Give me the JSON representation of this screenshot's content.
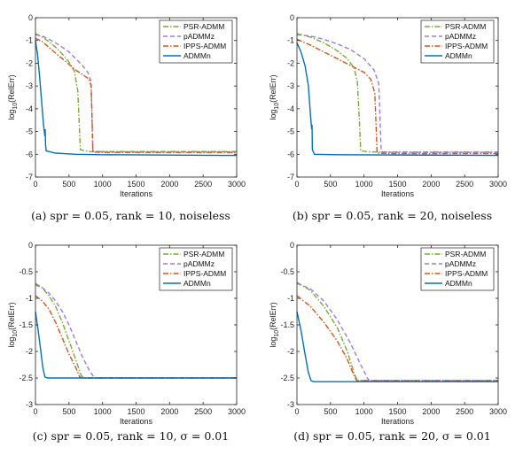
{
  "chart_data": [
    {
      "type": "line",
      "caption": "(a) spr = 0.05, rank = 10, noiseless",
      "xlabel": "Iterations",
      "ylabel": "log10(RelErr)",
      "xlim": [
        0,
        3000
      ],
      "ylim": [
        -7,
        0
      ],
      "xticks": [
        "0",
        "500",
        "1000",
        "1500",
        "2000",
        "2500",
        "3000"
      ],
      "yticks": [
        "0",
        "-1",
        "-2",
        "-3",
        "-4",
        "-5",
        "-6",
        "-7"
      ],
      "legend": "top-right",
      "series": [
        {
          "name": "PSR-ADMM",
          "color": "#77ac30",
          "dash": "6,2,1.5,2",
          "points": [
            [
              0,
              -0.7
            ],
            [
              100,
              -0.85
            ],
            [
              200,
              -1.05
            ],
            [
              300,
              -1.3
            ],
            [
              400,
              -1.6
            ],
            [
              500,
              -1.95
            ],
            [
              580,
              -2.35
            ],
            [
              630,
              -3.2
            ],
            [
              650,
              -4.5
            ],
            [
              670,
              -5.8
            ],
            [
              800,
              -5.88
            ],
            [
              3000,
              -5.88
            ]
          ]
        },
        {
          "name": "pADMMz",
          "color": "#9d7be0",
          "dash": "5,3",
          "points": [
            [
              0,
              -0.75
            ],
            [
              100,
              -0.8
            ],
            [
              200,
              -0.95
            ],
            [
              300,
              -1.1
            ],
            [
              400,
              -1.3
            ],
            [
              500,
              -1.5
            ],
            [
              600,
              -1.8
            ],
            [
              700,
              -2.1
            ],
            [
              780,
              -2.4
            ],
            [
              830,
              -2.8
            ],
            [
              845,
              -4.5
            ],
            [
              855,
              -5.85
            ],
            [
              1000,
              -5.9
            ],
            [
              3000,
              -5.9
            ]
          ]
        },
        {
          "name": "IPPS-ADMM",
          "color": "#d95319",
          "dash": "6,2,1.5,2",
          "points": [
            [
              0,
              -0.9
            ],
            [
              100,
              -1.05
            ],
            [
              200,
              -1.3
            ],
            [
              300,
              -1.55
            ],
            [
              400,
              -1.8
            ],
            [
              500,
              -2.05
            ],
            [
              600,
              -2.3
            ],
            [
              700,
              -2.5
            ],
            [
              800,
              -2.7
            ],
            [
              830,
              -3.0
            ],
            [
              845,
              -4.5
            ],
            [
              855,
              -5.9
            ],
            [
              1000,
              -5.92
            ],
            [
              3000,
              -5.92
            ]
          ]
        },
        {
          "name": "ADMMn",
          "color": "#0072bd",
          "dash": "",
          "points": [
            [
              0,
              -1.0
            ],
            [
              30,
              -1.6
            ],
            [
              60,
              -2.5
            ],
            [
              90,
              -3.6
            ],
            [
              120,
              -4.7
            ],
            [
              140,
              -5.2
            ],
            [
              145,
              -4.9
            ],
            [
              150,
              -5.6
            ],
            [
              160,
              -5.85
            ],
            [
              300,
              -5.95
            ],
            [
              600,
              -6.0
            ],
            [
              1000,
              -6.02
            ],
            [
              3000,
              -6.05
            ]
          ]
        }
      ]
    },
    {
      "type": "line",
      "caption": "(b) spr = 0.05, rank = 20, noiseless",
      "xlabel": "Iterations",
      "ylabel": "log10(RelErr)",
      "xlim": [
        0,
        3000
      ],
      "ylim": [
        -7,
        0
      ],
      "xticks": [
        "0",
        "500",
        "1000",
        "1500",
        "2000",
        "2500",
        "3000"
      ],
      "yticks": [
        "0",
        "-1",
        "-2",
        "-3",
        "-4",
        "-5",
        "-6",
        "-7"
      ],
      "legend": "top-right",
      "series": [
        {
          "name": "PSR-ADMM",
          "color": "#77ac30",
          "dash": "6,2,1.5,2",
          "points": [
            [
              0,
              -0.7
            ],
            [
              200,
              -0.85
            ],
            [
              400,
              -1.1
            ],
            [
              600,
              -1.45
            ],
            [
              750,
              -1.8
            ],
            [
              850,
              -2.2
            ],
            [
              900,
              -2.8
            ],
            [
              930,
              -4.5
            ],
            [
              950,
              -5.85
            ],
            [
              1100,
              -5.9
            ],
            [
              3000,
              -5.9
            ]
          ]
        },
        {
          "name": "pADMMz",
          "color": "#9d7be0",
          "dash": "5,3",
          "points": [
            [
              0,
              -0.75
            ],
            [
              200,
              -0.8
            ],
            [
              400,
              -0.95
            ],
            [
              600,
              -1.15
            ],
            [
              800,
              -1.4
            ],
            [
              1000,
              -1.8
            ],
            [
              1150,
              -2.3
            ],
            [
              1220,
              -2.9
            ],
            [
              1240,
              -4.5
            ],
            [
              1255,
              -5.9
            ],
            [
              1400,
              -5.92
            ],
            [
              3000,
              -5.92
            ]
          ]
        },
        {
          "name": "IPPS-ADMM",
          "color": "#d95319",
          "dash": "6,2,1.5,2",
          "points": [
            [
              0,
              -0.95
            ],
            [
              200,
              -1.2
            ],
            [
              400,
              -1.5
            ],
            [
              600,
              -1.8
            ],
            [
              800,
              -2.1
            ],
            [
              1000,
              -2.4
            ],
            [
              1100,
              -2.7
            ],
            [
              1160,
              -3.3
            ],
            [
              1180,
              -4.8
            ],
            [
              1195,
              -5.95
            ],
            [
              1400,
              -5.97
            ],
            [
              3000,
              -5.97
            ]
          ]
        },
        {
          "name": "ADMMn",
          "color": "#0072bd",
          "dash": "",
          "points": [
            [
              0,
              -1.1
            ],
            [
              60,
              -1.5
            ],
            [
              120,
              -2.1
            ],
            [
              170,
              -3.0
            ],
            [
              200,
              -4.2
            ],
            [
              220,
              -4.9
            ],
            [
              225,
              -4.7
            ],
            [
              230,
              -5.8
            ],
            [
              260,
              -6.0
            ],
            [
              600,
              -6.02
            ],
            [
              3000,
              -6.05
            ]
          ]
        }
      ]
    },
    {
      "type": "line",
      "caption": "(c) spr = 0.05, rank = 10, σ = 0.01",
      "xlabel": "Iterations",
      "ylabel": "log10(RelErr)",
      "xlim": [
        0,
        3000
      ],
      "ylim": [
        -3,
        0
      ],
      "xticks": [
        "0",
        "500",
        "1000",
        "1500",
        "2000",
        "2500",
        "3000"
      ],
      "yticks": [
        "0",
        "-0.5",
        "-1",
        "-1.5",
        "-2",
        "-2.5",
        "-3"
      ],
      "legend": "top-right",
      "series": [
        {
          "name": "PSR-ADMM",
          "color": "#77ac30",
          "dash": "6,2,1.5,2",
          "points": [
            [
              0,
              -0.72
            ],
            [
              100,
              -0.8
            ],
            [
              200,
              -0.95
            ],
            [
              300,
              -1.15
            ],
            [
              400,
              -1.45
            ],
            [
              500,
              -1.8
            ],
            [
              600,
              -2.15
            ],
            [
              680,
              -2.45
            ],
            [
              720,
              -2.5
            ],
            [
              3000,
              -2.5
            ]
          ]
        },
        {
          "name": "pADMMz",
          "color": "#9d7be0",
          "dash": "5,3",
          "points": [
            [
              0,
              -0.75
            ],
            [
              100,
              -0.8
            ],
            [
              200,
              -0.9
            ],
            [
              300,
              -1.05
            ],
            [
              400,
              -1.25
            ],
            [
              500,
              -1.5
            ],
            [
              600,
              -1.8
            ],
            [
              700,
              -2.1
            ],
            [
              800,
              -2.35
            ],
            [
              880,
              -2.5
            ],
            [
              3000,
              -2.5
            ]
          ]
        },
        {
          "name": "IPPS-ADMM",
          "color": "#d95319",
          "dash": "6,2,1.5,2",
          "points": [
            [
              0,
              -0.95
            ],
            [
              100,
              -1.05
            ],
            [
              200,
              -1.2
            ],
            [
              300,
              -1.45
            ],
            [
              400,
              -1.75
            ],
            [
              500,
              -2.05
            ],
            [
              600,
              -2.3
            ],
            [
              660,
              -2.48
            ],
            [
              700,
              -2.5
            ],
            [
              3000,
              -2.5
            ]
          ]
        },
        {
          "name": "ADMMn",
          "color": "#0072bd",
          "dash": "",
          "points": [
            [
              0,
              -1.25
            ],
            [
              40,
              -1.6
            ],
            [
              80,
              -2.0
            ],
            [
              110,
              -2.3
            ],
            [
              140,
              -2.48
            ],
            [
              180,
              -2.5
            ],
            [
              3000,
              -2.5
            ]
          ]
        }
      ]
    },
    {
      "type": "line",
      "caption": "(d) spr = 0.05, rank = 20, σ = 0.01",
      "xlabel": "Iterations",
      "ylabel": "log10(RelErr)",
      "xlim": [
        0,
        3000
      ],
      "ylim": [
        -3,
        0
      ],
      "xticks": [
        "0",
        "500",
        "1000",
        "1500",
        "2000",
        "2500",
        "3000"
      ],
      "yticks": [
        "0",
        "-0.5",
        "-1",
        "-1.5",
        "-2",
        "-2.5",
        "-3"
      ],
      "legend": "top-right",
      "series": [
        {
          "name": "PSR-ADMM",
          "color": "#77ac30",
          "dash": "6,2,1.5,2",
          "points": [
            [
              0,
              -0.7
            ],
            [
              200,
              -0.85
            ],
            [
              400,
              -1.15
            ],
            [
              600,
              -1.55
            ],
            [
              750,
              -2.0
            ],
            [
              850,
              -2.4
            ],
            [
              900,
              -2.55
            ],
            [
              3000,
              -2.55
            ]
          ]
        },
        {
          "name": "pADMMz",
          "color": "#9d7be0",
          "dash": "5,3",
          "points": [
            [
              0,
              -0.72
            ],
            [
              200,
              -0.82
            ],
            [
              400,
              -1.05
            ],
            [
              600,
              -1.4
            ],
            [
              800,
              -1.85
            ],
            [
              950,
              -2.25
            ],
            [
              1050,
              -2.5
            ],
            [
              1080,
              -2.55
            ],
            [
              3000,
              -2.55
            ]
          ]
        },
        {
          "name": "IPPS-ADMM",
          "color": "#d95319",
          "dash": "6,2,1.5,2",
          "points": [
            [
              0,
              -0.95
            ],
            [
              200,
              -1.15
            ],
            [
              400,
              -1.45
            ],
            [
              600,
              -1.8
            ],
            [
              750,
              -2.15
            ],
            [
              850,
              -2.45
            ],
            [
              890,
              -2.55
            ],
            [
              3000,
              -2.55
            ]
          ]
        },
        {
          "name": "ADMMn",
          "color": "#0072bd",
          "dash": "",
          "points": [
            [
              0,
              -1.25
            ],
            [
              60,
              -1.6
            ],
            [
              120,
              -2.05
            ],
            [
              170,
              -2.4
            ],
            [
              210,
              -2.55
            ],
            [
              250,
              -2.57
            ],
            [
              3000,
              -2.57
            ]
          ]
        }
      ]
    }
  ]
}
